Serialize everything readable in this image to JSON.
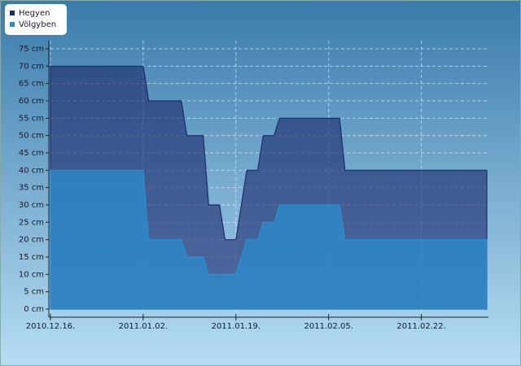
{
  "chart_data": {
    "type": "area",
    "x": [
      "2010-12-16",
      "2011-01-02",
      "2011-01-03",
      "2011-01-09",
      "2011-01-10",
      "2011-01-13",
      "2011-01-14",
      "2011-01-16",
      "2011-01-17",
      "2011-01-19",
      "2011-01-21",
      "2011-01-23",
      "2011-01-24",
      "2011-01-26",
      "2011-01-27",
      "2011-02-07",
      "2011-02-08",
      "2011-03-06"
    ],
    "series": [
      {
        "name": "Hegyen",
        "color": "#1c2a6e",
        "values": [
          70,
          70,
          60,
          60,
          50,
          50,
          30,
          30,
          20,
          20,
          40,
          40,
          50,
          50,
          55,
          55,
          40,
          40
        ]
      },
      {
        "name": "Völgyben",
        "color": "#2a8fd0",
        "values": [
          40,
          40,
          20,
          20,
          15,
          15,
          10,
          10,
          10,
          10,
          20,
          20,
          25,
          25,
          30,
          30,
          20,
          20
        ]
      }
    ],
    "xlim": [
      "2010-12-16",
      "2011-03-06"
    ],
    "xticks": [
      {
        "value": "2010-12-16",
        "label": "2010.12.16."
      },
      {
        "value": "2011-01-02",
        "label": "2011.01.02."
      },
      {
        "value": "2011-01-19",
        "label": "2011.01.19."
      },
      {
        "value": "2011-02-05",
        "label": "2011.02.05."
      },
      {
        "value": "2011-02-22",
        "label": "2011.02.22."
      }
    ],
    "ylim": [
      0,
      75
    ],
    "yticks": [
      {
        "value": 0,
        "label": "0 cm"
      },
      {
        "value": 5,
        "label": "5 cm"
      },
      {
        "value": 10,
        "label": "10 cm"
      },
      {
        "value": 15,
        "label": "15 cm"
      },
      {
        "value": 20,
        "label": "20 cm"
      },
      {
        "value": 25,
        "label": "25 cm"
      },
      {
        "value": 30,
        "label": "30 cm"
      },
      {
        "value": 35,
        "label": "35 cm"
      },
      {
        "value": 40,
        "label": "40 cm"
      },
      {
        "value": 45,
        "label": "45 cm"
      },
      {
        "value": 50,
        "label": "50 cm"
      },
      {
        "value": 55,
        "label": "55 cm"
      },
      {
        "value": 60,
        "label": "60 cm"
      },
      {
        "value": 65,
        "label": "65 cm"
      },
      {
        "value": 70,
        "label": "70 cm"
      },
      {
        "value": 75,
        "label": "75 cm"
      }
    ],
    "grid": true,
    "legend": "top-left"
  }
}
